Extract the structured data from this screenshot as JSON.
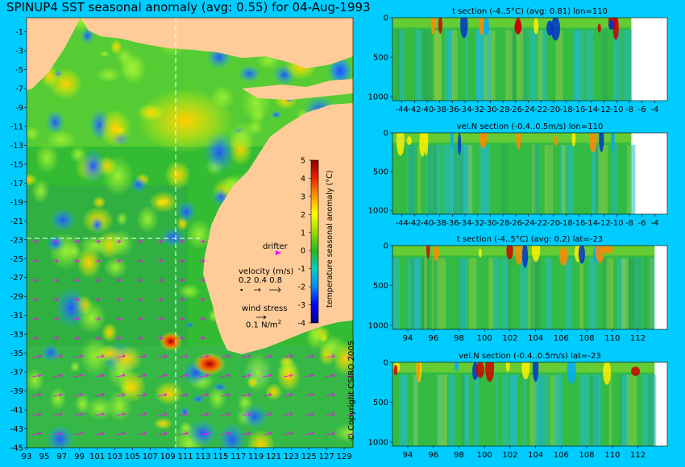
{
  "map": {
    "title": "SPINUP4 SST seasonal anomaly (avg: 0.55) for 04-Aug-1993",
    "lat_ticks": [
      "-1",
      "-3",
      "-5",
      "-7",
      "-9",
      "-11",
      "-13",
      "-15",
      "-17",
      "-19",
      "-21",
      "-23",
      "-25",
      "-27",
      "-29",
      "-31",
      "-33",
      "-35",
      "-37",
      "-39",
      "-41",
      "-43",
      "-45"
    ],
    "lon_ticks": [
      "93",
      "95",
      "97",
      "99",
      "101",
      "103",
      "105",
      "107",
      "109",
      "111",
      "113",
      "115",
      "117",
      "119",
      "121",
      "123",
      "125",
      "127",
      "129"
    ],
    "colorbar_label": "temperature seasonal anomaly (°C)",
    "colorbar_ticks": [
      "5",
      "4",
      "3",
      "2",
      "1",
      "0",
      "-1",
      "-2",
      "-3",
      "-4"
    ],
    "colorbar_range": [
      -4,
      5
    ],
    "drifter_label": "drifter",
    "velocity_label": "velocity (m/s)",
    "velocity_values": [
      "0.2",
      "0.4",
      "0.8"
    ],
    "wind_label": "wind stress",
    "wind_value": "0.1 N/m",
    "wind_exp": "2",
    "section_lat": "-23",
    "section_lon": "110",
    "colors": {
      "land": "#ffcc99",
      "ocean_base": "#33bb33",
      "frame": "#00ccff",
      "arrows": "#ff00ff",
      "dashed": "#ffffff"
    }
  },
  "copyright": "© Copyright CSIRO 2005",
  "chart_data": [
    {
      "type": "heatmap",
      "title": "SPINUP4 SST seasonal anomaly (avg: 0.55) for 04-Aug-1993",
      "x_ticks": [
        93,
        95,
        97,
        99,
        101,
        103,
        105,
        107,
        109,
        111,
        113,
        115,
        117,
        119,
        121,
        123,
        125,
        127,
        129
      ],
      "y_ticks": [
        -1,
        -3,
        -5,
        -7,
        -9,
        -11,
        -13,
        -15,
        -17,
        -19,
        -21,
        -23,
        -25,
        -27,
        -29,
        -31,
        -33,
        -35,
        -37,
        -39,
        -41,
        -43,
        -45
      ],
      "xlim": [
        93,
        130
      ],
      "ylim": [
        -45,
        0.5
      ],
      "colorbar": {
        "label": "temperature seasonal anomaly (°C)",
        "range": [
          -4,
          5
        ]
      },
      "average": 0.55
    },
    {
      "type": "heatmap",
      "title": "t section (-4..5°C) (avg: 0.81) lon=110",
      "x_ticks": [
        "-44",
        "-42",
        "-40",
        "-38",
        "-36",
        "-34",
        "-32",
        "-30",
        "-28",
        "-26",
        "-24",
        "-22",
        "-20",
        "-18",
        "-16",
        "-14",
        "-12",
        "-10",
        "-8",
        "-6",
        "-4"
      ],
      "y_ticks": [
        "0",
        "500",
        "1000"
      ],
      "xlim": [
        -45.5,
        -2
      ],
      "ylim": [
        1050,
        0
      ],
      "valid_xmax": -7.7
    },
    {
      "type": "heatmap",
      "title": "vel.N section (-0.4..0.5m/s) lon=110",
      "x_ticks": [
        "-44",
        "-42",
        "-40",
        "-38",
        "-36",
        "-34",
        "-32",
        "-30",
        "-28",
        "-26",
        "-24",
        "-22",
        "-20",
        "-18",
        "-16",
        "-14",
        "-12",
        "-10",
        "-8",
        "-6",
        "-4"
      ],
      "y_ticks": [
        "0",
        "500",
        "1000"
      ],
      "xlim": [
        -45.5,
        -2
      ],
      "ylim": [
        1050,
        0
      ],
      "valid_xmax": -7.7
    },
    {
      "type": "heatmap",
      "title": "t section (-4..5°C) (avg: 0.2) lat=-23",
      "x_ticks": [
        "94",
        "96",
        "98",
        "100",
        "102",
        "104",
        "106",
        "108",
        "110",
        "112"
      ],
      "y_ticks": [
        "0",
        "500",
        "1000"
      ],
      "xlim": [
        92.8,
        114.3
      ],
      "ylim": [
        1050,
        0
      ],
      "valid_xmax": 113.3
    },
    {
      "type": "heatmap",
      "title": "vel.N section (-0.4..0.5m/s) lat=-23",
      "x_ticks": [
        "94",
        "96",
        "98",
        "100",
        "102",
        "104",
        "106",
        "108",
        "110",
        "112"
      ],
      "y_ticks": [
        "0",
        "500",
        "1000"
      ],
      "xlim": [
        92.8,
        114.3
      ],
      "ylim": [
        1050,
        0
      ],
      "valid_xmax": 113.3
    }
  ]
}
